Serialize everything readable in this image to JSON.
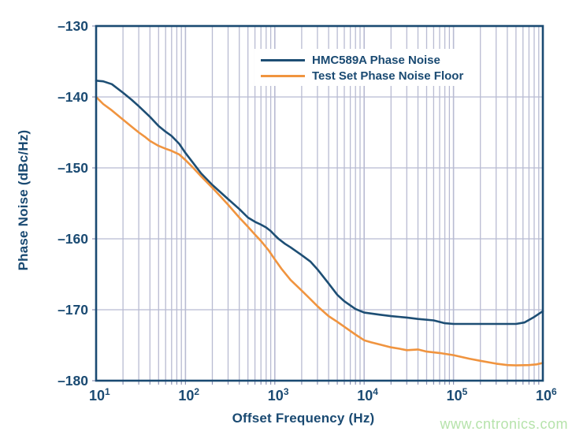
{
  "watermark": {
    "text": "www.cntronics.com",
    "color": "#b6e3ab"
  },
  "colors": {
    "axis_text": "#1a4a72",
    "plot_border": "#1a4a72",
    "gridline": "#b8bbd2",
    "tick": "#8d93b5",
    "background": "#ffffff",
    "series_navy": "#1d4e74",
    "series_orange": "#f0943f"
  },
  "chart_data": {
    "type": "line",
    "title": "",
    "xlabel": "Offset Frequency (Hz)",
    "ylabel": "Phase Noise (dBc/Hz)",
    "x_scale": "log",
    "xlim": [
      10,
      1000000
    ],
    "ylim": [
      -180,
      -130
    ],
    "grid": {
      "x_minor_decades": true,
      "y_major_step": 10,
      "on": true
    },
    "legend_position": "inside top-center",
    "x_ticks": [
      {
        "value": 10,
        "base": "10",
        "exp": "1"
      },
      {
        "value": 100,
        "base": "10",
        "exp": "2"
      },
      {
        "value": 1000,
        "base": "10",
        "exp": "3"
      },
      {
        "value": 10000,
        "base": "10",
        "exp": "4"
      },
      {
        "value": 100000,
        "base": "10",
        "exp": "5"
      },
      {
        "value": 1000000,
        "base": "10",
        "exp": "6"
      }
    ],
    "y_ticks": [
      {
        "value": -130,
        "label": "–130"
      },
      {
        "value": -140,
        "label": "–140"
      },
      {
        "value": -150,
        "label": "–150"
      },
      {
        "value": -160,
        "label": "–160"
      },
      {
        "value": -170,
        "label": "–170"
      },
      {
        "value": -180,
        "label": "–180"
      }
    ],
    "series": [
      {
        "name": "HMC589A Phase Noise",
        "color": "#1d4e74",
        "points": [
          [
            10,
            -137.7
          ],
          [
            12,
            -137.8
          ],
          [
            15,
            -138.2
          ],
          [
            20,
            -139.4
          ],
          [
            25,
            -140.4
          ],
          [
            30,
            -141.3
          ],
          [
            40,
            -142.8
          ],
          [
            50,
            -144.1
          ],
          [
            60,
            -144.9
          ],
          [
            70,
            -145.5
          ],
          [
            85,
            -146.6
          ],
          [
            100,
            -147.9
          ],
          [
            120,
            -149.2
          ],
          [
            150,
            -150.8
          ],
          [
            200,
            -152.4
          ],
          [
            250,
            -153.5
          ],
          [
            300,
            -154.4
          ],
          [
            400,
            -155.8
          ],
          [
            500,
            -157.0
          ],
          [
            600,
            -157.6
          ],
          [
            700,
            -158.0
          ],
          [
            800,
            -158.4
          ],
          [
            900,
            -158.9
          ],
          [
            1000,
            -159.5
          ],
          [
            1100,
            -160.0
          ],
          [
            1300,
            -160.7
          ],
          [
            1500,
            -161.2
          ],
          [
            2000,
            -162.3
          ],
          [
            2500,
            -163.2
          ],
          [
            3000,
            -164.3
          ],
          [
            4000,
            -166.3
          ],
          [
            5000,
            -167.9
          ],
          [
            6000,
            -168.8
          ],
          [
            8000,
            -169.9
          ],
          [
            10000,
            -170.4
          ],
          [
            15000,
            -170.7
          ],
          [
            20000,
            -170.9
          ],
          [
            30000,
            -171.1
          ],
          [
            40000,
            -171.3
          ],
          [
            60000,
            -171.5
          ],
          [
            80000,
            -171.9
          ],
          [
            100000,
            -172.0
          ],
          [
            150000,
            -172.0
          ],
          [
            200000,
            -172.0
          ],
          [
            300000,
            -172.0
          ],
          [
            400000,
            -172.0
          ],
          [
            500000,
            -172.0
          ],
          [
            620000,
            -171.8
          ],
          [
            780000,
            -171.1
          ],
          [
            1000000,
            -170.2
          ]
        ]
      },
      {
        "name": "Test Set Phase Noise Floor",
        "color": "#f0943f",
        "points": [
          [
            10,
            -140.0
          ],
          [
            12,
            -141.0
          ],
          [
            15,
            -141.9
          ],
          [
            20,
            -143.2
          ],
          [
            25,
            -144.2
          ],
          [
            30,
            -145.0
          ],
          [
            35,
            -145.6
          ],
          [
            40,
            -146.2
          ],
          [
            50,
            -146.9
          ],
          [
            60,
            -147.3
          ],
          [
            70,
            -147.6
          ],
          [
            85,
            -148.1
          ],
          [
            100,
            -148.9
          ],
          [
            120,
            -149.9
          ],
          [
            150,
            -151.2
          ],
          [
            200,
            -152.8
          ],
          [
            250,
            -154.1
          ],
          [
            300,
            -155.2
          ],
          [
            400,
            -157.0
          ],
          [
            500,
            -158.3
          ],
          [
            600,
            -159.4
          ],
          [
            700,
            -160.3
          ],
          [
            850,
            -161.6
          ],
          [
            1000,
            -162.9
          ],
          [
            1200,
            -164.3
          ],
          [
            1500,
            -165.8
          ],
          [
            2000,
            -167.3
          ],
          [
            2500,
            -168.5
          ],
          [
            3000,
            -169.5
          ],
          [
            4000,
            -170.9
          ],
          [
            5000,
            -171.7
          ],
          [
            6000,
            -172.4
          ],
          [
            8000,
            -173.5
          ],
          [
            10000,
            -174.3
          ],
          [
            12000,
            -174.6
          ],
          [
            15000,
            -174.9
          ],
          [
            20000,
            -175.3
          ],
          [
            25000,
            -175.5
          ],
          [
            30000,
            -175.7
          ],
          [
            40000,
            -175.6
          ],
          [
            50000,
            -175.9
          ],
          [
            70000,
            -176.1
          ],
          [
            100000,
            -176.4
          ],
          [
            150000,
            -176.9
          ],
          [
            200000,
            -177.2
          ],
          [
            300000,
            -177.6
          ],
          [
            400000,
            -177.8
          ],
          [
            500000,
            -177.85
          ],
          [
            700000,
            -177.8
          ],
          [
            850000,
            -177.7
          ],
          [
            1000000,
            -177.5
          ]
        ]
      }
    ]
  }
}
